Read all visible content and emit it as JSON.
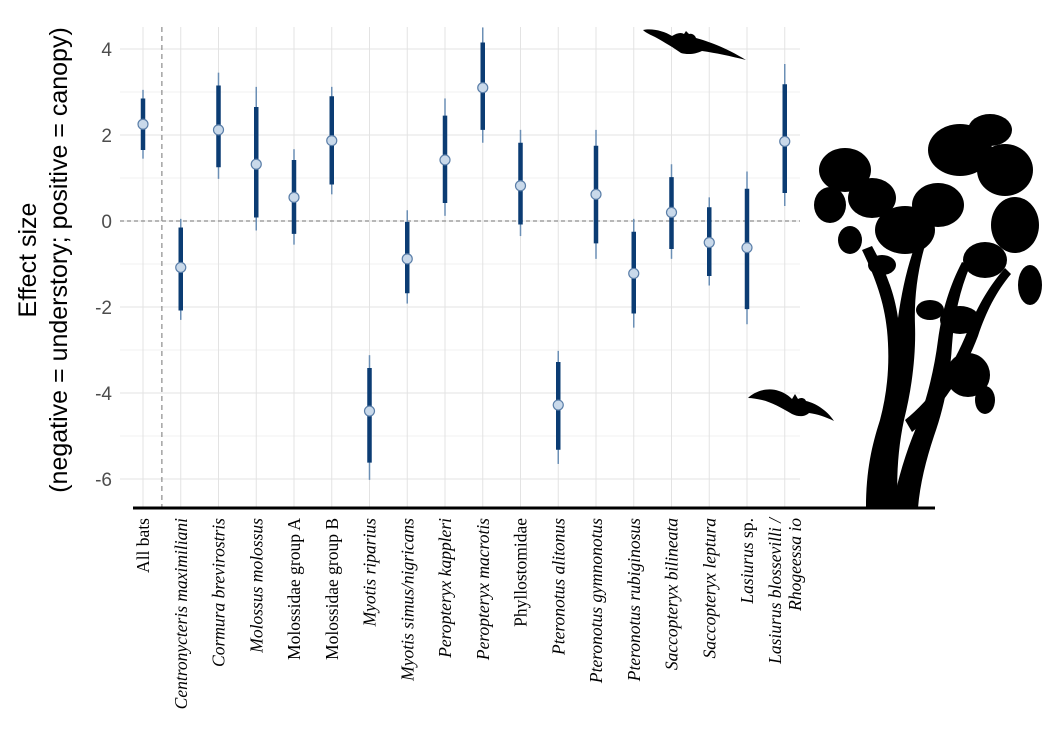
{
  "chart_data": {
    "type": "scatter",
    "ylabel_lines": [
      "Effect size",
      "(negative = understory; positive = canopy)"
    ],
    "ylim": [
      -6.6,
      4.6
    ],
    "yticks": [
      4,
      2,
      0,
      -2,
      -4,
      -6
    ],
    "ytick_labels": [
      "4",
      "2",
      "0",
      "-2",
      "-4",
      "-6"
    ],
    "grid": true,
    "reference_line_y": 0,
    "point_color": "#c9d9ea",
    "interval_color": "#0b3c73",
    "categories": [
      {
        "lines": [
          "All bats"
        ],
        "italic": false,
        "value": 2.25,
        "inner": [
          1.65,
          2.85
        ],
        "outer": [
          1.45,
          3.05
        ]
      },
      {
        "lines": [
          "Centronycteris maximiliani"
        ],
        "italic": true,
        "value": -1.08,
        "inner": [
          -2.08,
          -0.15
        ],
        "outer": [
          -2.3,
          0.05
        ]
      },
      {
        "lines": [
          "Cormura brevirostris"
        ],
        "italic": true,
        "value": 2.12,
        "inner": [
          1.25,
          3.15
        ],
        "outer": [
          0.98,
          3.45
        ]
      },
      {
        "lines": [
          "Molossus molossus"
        ],
        "italic": true,
        "value": 1.32,
        "inner": [
          0.08,
          2.65
        ],
        "outer": [
          -0.22,
          3.12
        ]
      },
      {
        "lines": [
          "Molossidae group A"
        ],
        "italic": false,
        "value": 0.55,
        "inner": [
          -0.3,
          1.42
        ],
        "outer": [
          -0.55,
          1.67
        ]
      },
      {
        "lines": [
          "Molossidae group B"
        ],
        "italic": false,
        "value": 1.87,
        "inner": [
          0.85,
          2.9
        ],
        "outer": [
          0.62,
          3.12
        ]
      },
      {
        "lines": [
          "Myotis riparius"
        ],
        "italic": true,
        "value": -4.42,
        "inner": [
          -5.62,
          -3.42
        ],
        "outer": [
          -6.02,
          -3.12
        ]
      },
      {
        "lines": [
          "Myotis simus/nigricans"
        ],
        "italic": true,
        "value": -0.88,
        "inner": [
          -1.68,
          -0.02
        ],
        "outer": [
          -1.92,
          0.25
        ]
      },
      {
        "lines": [
          "Peropteryx kappleri"
        ],
        "italic": true,
        "value": 1.42,
        "inner": [
          0.42,
          2.45
        ],
        "outer": [
          0.12,
          2.85
        ]
      },
      {
        "lines": [
          "Peropteryx macrotis"
        ],
        "italic": true,
        "value": 3.1,
        "inner": [
          2.12,
          4.15
        ],
        "outer": [
          1.82,
          4.5
        ]
      },
      {
        "lines": [
          "Phyllostomidae"
        ],
        "italic": false,
        "value": 0.82,
        "inner": [
          -0.08,
          1.82
        ],
        "outer": [
          -0.35,
          2.12
        ]
      },
      {
        "lines": [
          "Pteronotus alitonus"
        ],
        "italic": true,
        "value": -4.28,
        "inner": [
          -5.32,
          -3.28
        ],
        "outer": [
          -5.65,
          -3.02
        ]
      },
      {
        "lines": [
          "Pteronotus gymnonotus"
        ],
        "italic": true,
        "value": 0.62,
        "inner": [
          -0.52,
          1.75
        ],
        "outer": [
          -0.88,
          2.12
        ]
      },
      {
        "lines": [
          "Pteronotus rubiginosus"
        ],
        "italic": true,
        "value": -1.22,
        "inner": [
          -2.15,
          -0.25
        ],
        "outer": [
          -2.48,
          0.05
        ]
      },
      {
        "lines": [
          "Saccopteryx bilineata"
        ],
        "italic": true,
        "value": 0.2,
        "inner": [
          -0.65,
          1.02
        ],
        "outer": [
          -0.88,
          1.32
        ]
      },
      {
        "lines": [
          "Saccopteryx leptura"
        ],
        "italic": true,
        "value": -0.5,
        "inner": [
          -1.28,
          0.32
        ],
        "outer": [
          -1.5,
          0.55
        ]
      },
      {
        "lines": [
          "Lasiurus",
          " sp."
        ],
        "italic_parts": [
          true,
          false
        ],
        "italic": false,
        "value": -0.62,
        "inner": [
          -2.05,
          0.75
        ],
        "outer": [
          -2.4,
          1.15
        ]
      },
      {
        "lines": [
          "Lasiurus blossevilli /",
          "Rhogeessa io"
        ],
        "italic": true,
        "value": 1.85,
        "inner": [
          0.65,
          3.18
        ],
        "outer": [
          0.35,
          3.65
        ]
      }
    ]
  },
  "decorations": {
    "silhouette_color": "#000000",
    "icons": [
      "bat-silhouette-icon",
      "bat-silhouette-icon",
      "tree-silhouette-icon"
    ]
  }
}
